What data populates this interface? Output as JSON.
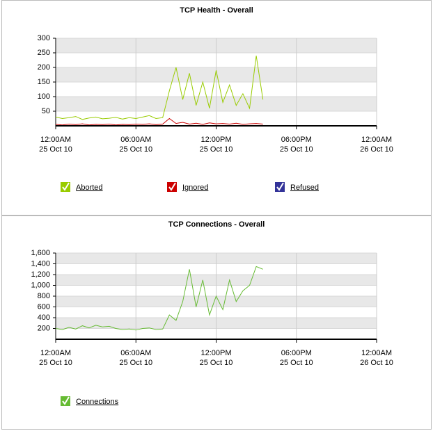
{
  "chart_data": [
    {
      "type": "line",
      "title": "TCP Health - Overall",
      "x": [
        0,
        0.5,
        1,
        1.5,
        2,
        2.5,
        3,
        3.5,
        4,
        4.5,
        5,
        5.5,
        6,
        6.5,
        7,
        7.5,
        8,
        8.5,
        9,
        9.5,
        10,
        10.5,
        11,
        11.5,
        12,
        12.5,
        13,
        13.5,
        14,
        14.5,
        15,
        15.5
      ],
      "series": [
        {
          "name": "Aborted",
          "color": "#99cc00",
          "values": [
            30,
            25,
            28,
            32,
            22,
            27,
            30,
            24,
            26,
            29,
            23,
            28,
            25,
            30,
            35,
            25,
            28,
            120,
            200,
            90,
            180,
            70,
            150,
            60,
            190,
            80,
            140,
            70,
            110,
            60,
            240,
            90
          ]
        },
        {
          "name": "Ignored",
          "color": "#cc0000",
          "values": [
            5,
            3,
            6,
            4,
            7,
            3,
            5,
            4,
            6,
            3,
            5,
            4,
            6,
            5,
            7,
            4,
            6,
            25,
            8,
            12,
            6,
            9,
            5,
            10,
            7,
            8,
            6,
            9,
            5,
            7,
            8,
            6
          ]
        },
        {
          "name": "Refused",
          "color": "#333399",
          "values": [
            0,
            0,
            0,
            0,
            0,
            0,
            0,
            0,
            0,
            0,
            0,
            0,
            0,
            0,
            0,
            0,
            0,
            0,
            0,
            0,
            0,
            0,
            0,
            0,
            0,
            0,
            0,
            0,
            0,
            0,
            0,
            0
          ]
        }
      ],
      "xlim": [
        0,
        24
      ],
      "xticks": [
        {
          "value": 0,
          "label": "12:00AM",
          "sublabel": "25 Oct 10"
        },
        {
          "value": 6,
          "label": "06:00AM",
          "sublabel": "25 Oct 10"
        },
        {
          "value": 12,
          "label": "12:00PM",
          "sublabel": "25 Oct 10"
        },
        {
          "value": 18,
          "label": "06:00PM",
          "sublabel": "25 Oct 10"
        },
        {
          "value": 24,
          "label": "12:00AM",
          "sublabel": "26 Oct 10"
        }
      ],
      "ylim": [
        0,
        300
      ],
      "yticks": [
        50,
        100,
        150,
        200,
        250,
        300
      ],
      "grid": true
    },
    {
      "type": "line",
      "title": "TCP Connections - Overall",
      "x": [
        0,
        0.5,
        1,
        1.5,
        2,
        2.5,
        3,
        3.5,
        4,
        4.5,
        5,
        5.5,
        6,
        6.5,
        7,
        7.5,
        8,
        8.5,
        9,
        9.5,
        10,
        10.5,
        11,
        11.5,
        12,
        12.5,
        13,
        13.5,
        14,
        14.5,
        15,
        15.5
      ],
      "series": [
        {
          "name": "Connections",
          "color": "#66bb33",
          "values": [
            200,
            180,
            220,
            190,
            250,
            210,
            260,
            230,
            240,
            200,
            180,
            190,
            170,
            200,
            210,
            180,
            190,
            450,
            350,
            700,
            1300,
            600,
            1100,
            450,
            800,
            550,
            1100,
            700,
            900,
            1000,
            1350,
            1300
          ]
        }
      ],
      "xlim": [
        0,
        24
      ],
      "xticks": [
        {
          "value": 0,
          "label": "12:00AM",
          "sublabel": "25 Oct 10"
        },
        {
          "value": 6,
          "label": "06:00AM",
          "sublabel": "25 Oct 10"
        },
        {
          "value": 12,
          "label": "12:00PM",
          "sublabel": "25 Oct 10"
        },
        {
          "value": 18,
          "label": "06:00PM",
          "sublabel": "25 Oct 10"
        },
        {
          "value": 24,
          "label": "12:00AM",
          "sublabel": "26 Oct 10"
        }
      ],
      "ylim": [
        0,
        1600
      ],
      "yticks": [
        200,
        400,
        600,
        800,
        {
          "value": 1000,
          "label": "1,000"
        },
        {
          "value": 1200,
          "label": "1,200"
        },
        {
          "value": 1400,
          "label": "1,400"
        },
        {
          "value": 1600,
          "label": "1,600"
        }
      ],
      "grid": true
    }
  ]
}
